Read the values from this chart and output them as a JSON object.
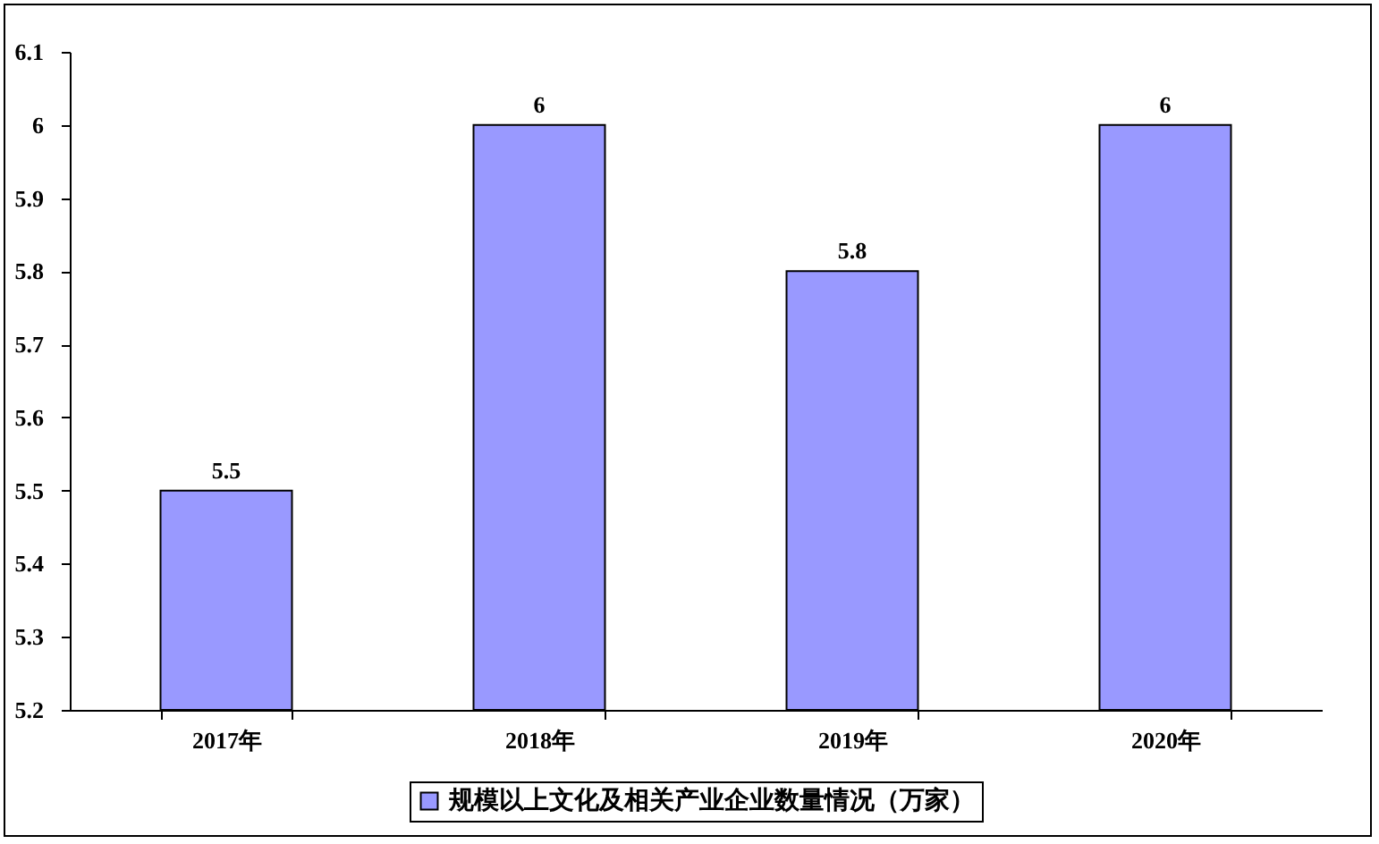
{
  "chart_data": {
    "type": "bar",
    "categories": [
      "2017年",
      "2018年",
      "2019年",
      "2020年"
    ],
    "series": [
      {
        "name": "规模以上文化及相关产业企业数量情况（万家）",
        "color": "#9999ff",
        "values": [
          5.5,
          6,
          5.8,
          6
        ]
      }
    ],
    "ylim": [
      5.2,
      6.1
    ],
    "yticks": [
      5.2,
      5.3,
      5.4,
      5.5,
      5.6,
      5.7,
      5.8,
      5.9,
      6,
      6.1
    ],
    "data_labels": true,
    "legend": "bottom",
    "grid": false
  }
}
